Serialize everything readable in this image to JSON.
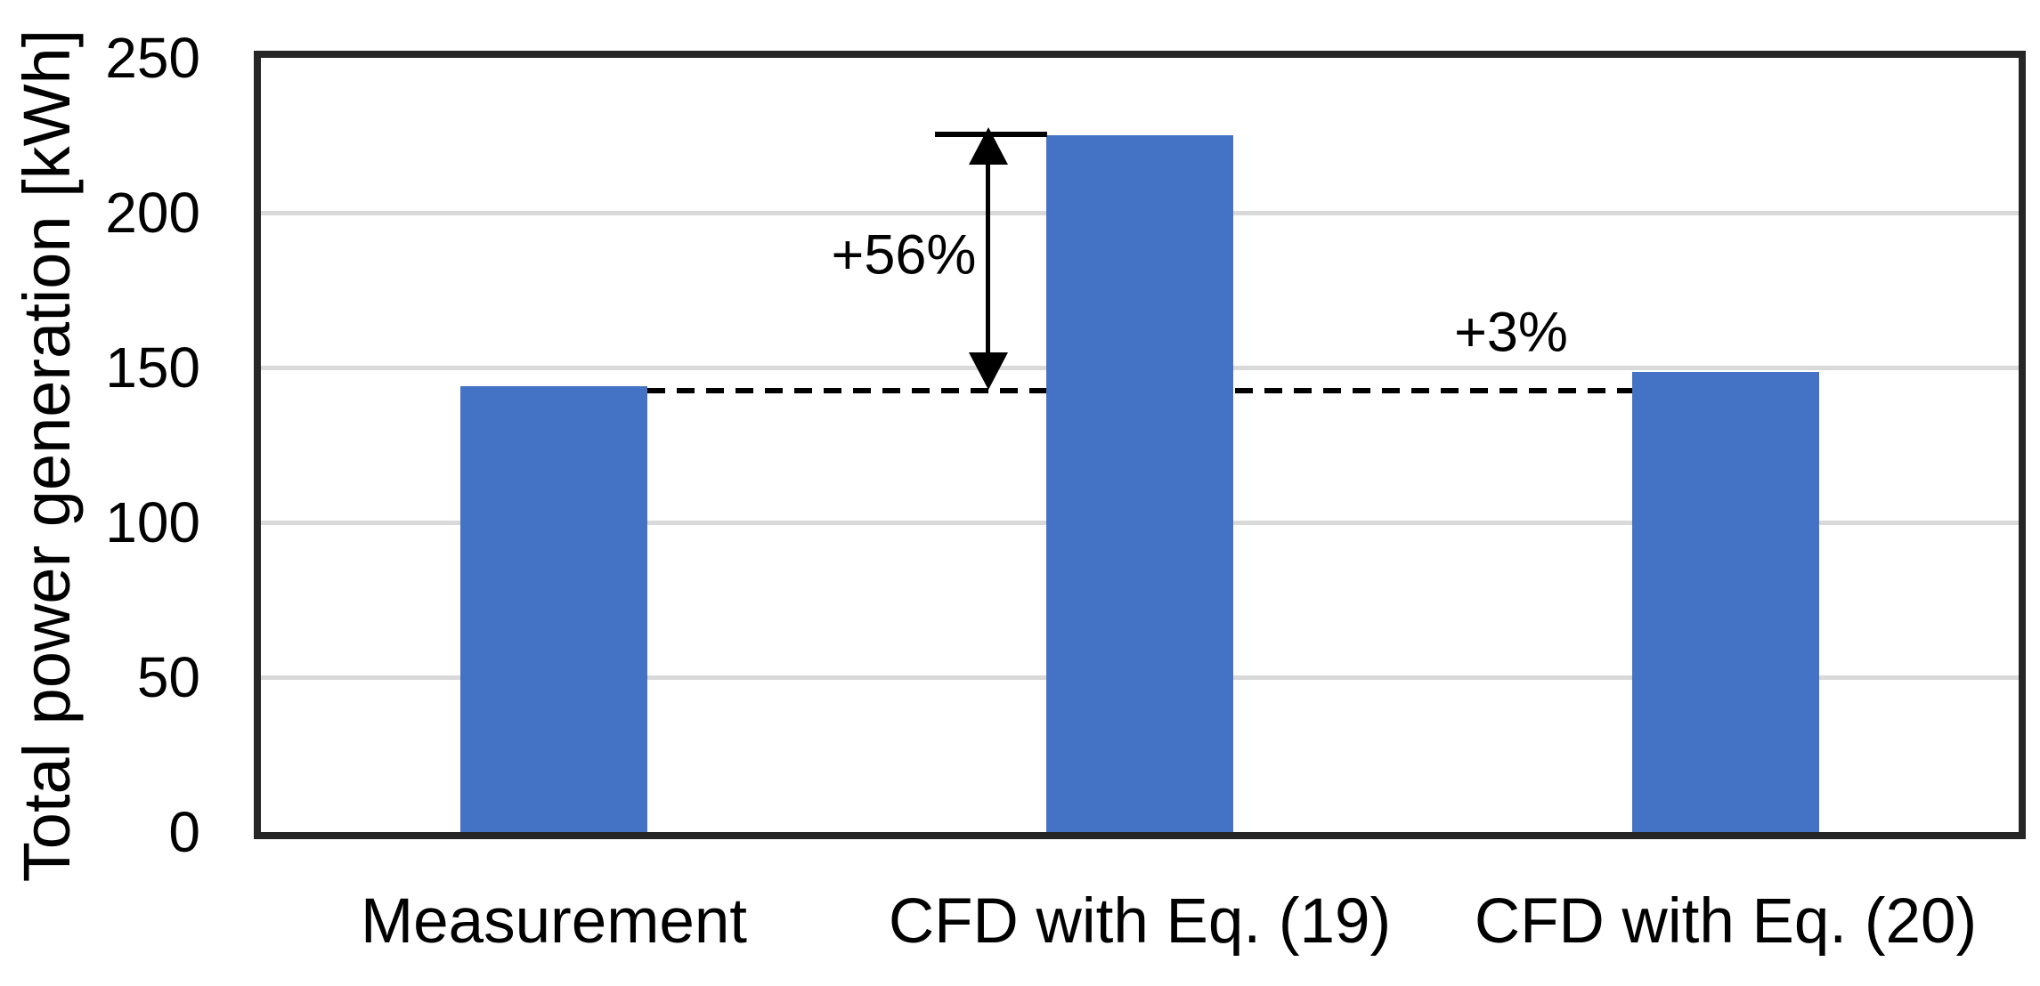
{
  "chart_data": {
    "type": "bar",
    "title": "",
    "ylabel": "Total power generation [kWh]",
    "xlabel": "",
    "categories": [
      "Measurement",
      "CFD with Eq. (19)",
      "CFD with Eq. (20)"
    ],
    "values": [
      144,
      225,
      148.5
    ],
    "ylim": [
      0,
      250
    ],
    "ytick_labels": [
      "250",
      "200",
      "150",
      "100",
      "50",
      "0"
    ],
    "grid": "horizontal gridlines every 50",
    "legend": "none",
    "bar_color": "#4472C4",
    "reference_line": {
      "style": "dashed",
      "value": 144,
      "spans": "from right edge of Measurement bar to left edge of CFD with Eq. (20) bar"
    },
    "annotations": [
      {
        "text": "+56%",
        "type": "vertical double-headed arrow",
        "target": "CFD with Eq. (19)",
        "from_value": 144,
        "to_value": 225
      },
      {
        "text": "+3%",
        "type": "text above dashed reference line",
        "target": "CFD with Eq. (20)"
      }
    ]
  },
  "colors": {
    "bar": "#4472C4",
    "gridline": "#D9D9D9",
    "axis_frame": "#262626",
    "annotation": "#000000",
    "background": "#FFFFFF"
  }
}
